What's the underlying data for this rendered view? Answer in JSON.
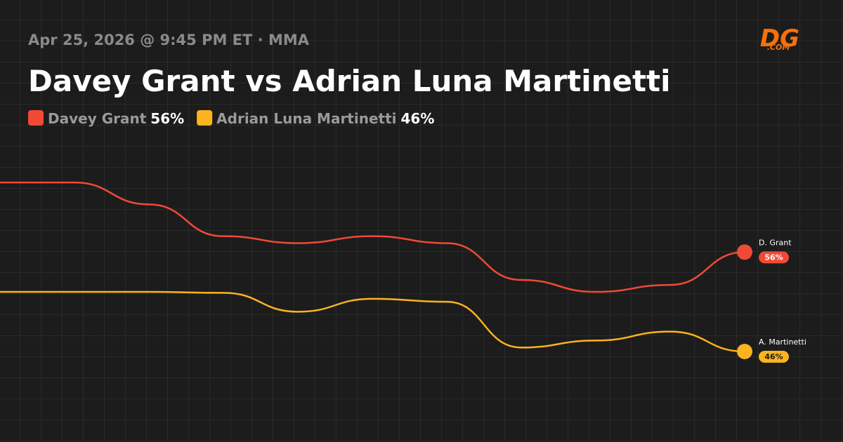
{
  "logo": {
    "main": "DG",
    "sub": ".COM"
  },
  "chart_data": {
    "type": "line",
    "subtitle": "Apr 25, 2026 @ 9:45 PM ET · MMA",
    "title": "Davey Grant vs Adrian Luna Martinetti",
    "ylim": [
      40,
      70
    ],
    "series": [
      {
        "name": "Davey Grant",
        "short_name": "D. Grant",
        "color": "#f04a36",
        "values": [
          63,
          63,
          60.8,
          57.6,
          56.9,
          57.6,
          56.9,
          53.2,
          52,
          52.7,
          56
        ],
        "value_labels": [
          null,
          null,
          null,
          null,
          null,
          null,
          null,
          null,
          null,
          null,
          "56%"
        ]
      },
      {
        "name": "Adrian Luna Martinetti",
        "short_name": "A. Martinetti",
        "color": "#fbb31f",
        "values": [
          52,
          52,
          52,
          51.9,
          50,
          51.3,
          51,
          46.4,
          47.1,
          48,
          46
        ],
        "value_labels": [
          null,
          null,
          null,
          null,
          null,
          null,
          null,
          null,
          null,
          null,
          "46%"
        ]
      }
    ]
  }
}
